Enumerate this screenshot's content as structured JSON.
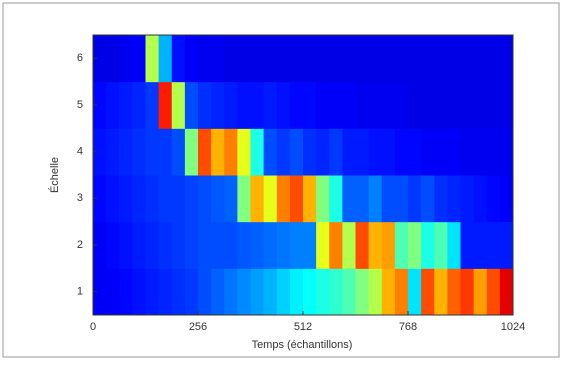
{
  "chart_data": {
    "type": "heatmap",
    "colormap": "jet",
    "zlim": [
      0,
      1
    ],
    "xlabel": "Temps (échantillons)",
    "ylabel": "Échelle",
    "xlim": [
      0,
      1024
    ],
    "xticks": [
      0,
      256,
      512,
      768,
      1024
    ],
    "ylim": [
      0.5,
      6.5
    ],
    "yticks": [
      1,
      2,
      3,
      4,
      5,
      6
    ],
    "y": [
      1,
      2,
      3,
      4,
      5,
      6
    ],
    "z": [
      [
        0.12,
        0.12,
        0.13,
        0.14,
        0.15,
        0.16,
        0.17,
        0.18,
        0.2,
        0.22,
        0.24,
        0.26,
        0.28,
        0.3,
        0.33,
        0.36,
        0.38,
        0.4,
        0.42,
        0.45,
        0.5,
        0.55,
        0.7,
        0.75,
        0.35,
        0.8,
        0.7,
        0.78,
        0.82,
        0.72,
        0.8,
        0.9
      ],
      [
        0.12,
        0.13,
        0.14,
        0.15,
        0.16,
        0.17,
        0.18,
        0.19,
        0.2,
        0.2,
        0.2,
        0.21,
        0.22,
        0.23,
        0.24,
        0.25,
        0.25,
        0.6,
        0.75,
        0.55,
        0.8,
        0.7,
        0.72,
        0.45,
        0.5,
        0.4,
        0.45,
        0.35,
        0.15,
        0.15,
        0.15,
        0.15
      ],
      [
        0.13,
        0.14,
        0.15,
        0.16,
        0.17,
        0.18,
        0.18,
        0.19,
        0.2,
        0.21,
        0.22,
        0.5,
        0.7,
        0.6,
        0.75,
        0.8,
        0.7,
        0.5,
        0.4,
        0.22,
        0.22,
        0.25,
        0.2,
        0.2,
        0.18,
        0.2,
        0.17,
        0.16,
        0.15,
        0.14,
        0.13,
        0.12
      ],
      [
        0.14,
        0.15,
        0.16,
        0.17,
        0.18,
        0.18,
        0.2,
        0.5,
        0.8,
        0.7,
        0.75,
        0.6,
        0.4,
        0.2,
        0.18,
        0.2,
        0.17,
        0.16,
        0.18,
        0.15,
        0.15,
        0.14,
        0.14,
        0.13,
        0.13,
        0.12,
        0.12,
        0.12,
        0.11,
        0.11,
        0.11,
        0.11
      ],
      [
        0.13,
        0.14,
        0.15,
        0.16,
        0.18,
        0.85,
        0.55,
        0.2,
        0.17,
        0.16,
        0.15,
        0.14,
        0.14,
        0.15,
        0.14,
        0.13,
        0.13,
        0.12,
        0.12,
        0.12,
        0.11,
        0.11,
        0.11,
        0.11,
        0.1,
        0.1,
        0.1,
        0.1,
        0.1,
        0.1,
        0.1,
        0.1
      ],
      [
        0.1,
        0.1,
        0.11,
        0.12,
        0.55,
        0.3,
        0.14,
        0.12,
        0.11,
        0.11,
        0.1,
        0.1,
        0.1,
        0.1,
        0.1,
        0.1,
        0.1,
        0.1,
        0.1,
        0.1,
        0.1,
        0.1,
        0.1,
        0.1,
        0.1,
        0.1,
        0.1,
        0.1,
        0.1,
        0.1,
        0.1,
        0.1
      ]
    ]
  }
}
